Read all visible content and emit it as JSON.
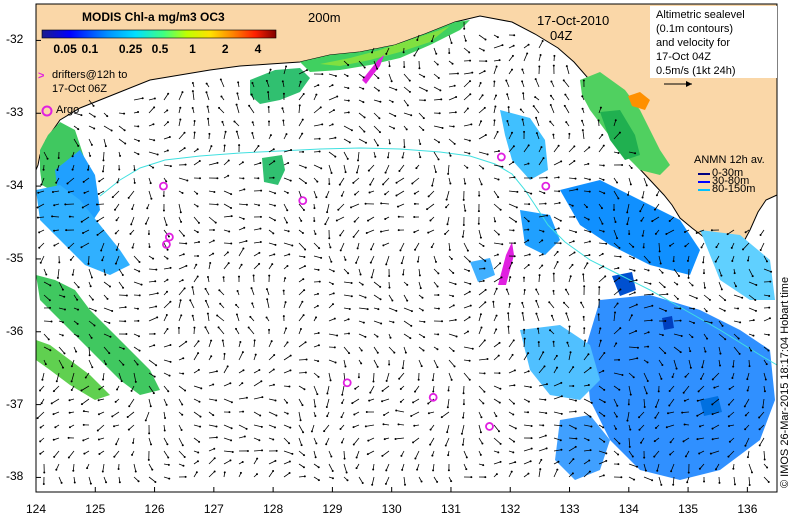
{
  "colorbar": {
    "title": "MODIS Chl-a mg/m3 OC3",
    "ticks": [
      "0.05",
      "0.1",
      "0.25",
      "0.5",
      "1",
      "2",
      "4"
    ],
    "colors": [
      "#1c1c8c",
      "#0000ff",
      "#0090ff",
      "#00e0ff",
      "#40ff80",
      "#c0ff00",
      "#ffe000",
      "#ff8000",
      "#ff2000",
      "#c00000",
      "#800000"
    ]
  },
  "contour_label": "200m",
  "date": {
    "date": "17-Oct-2010",
    "time": "04Z"
  },
  "altimetry_legend": {
    "lines": [
      "Altimetric sealevel",
      "(0.1m contours)",
      "and velocity for",
      "17-Oct 04Z",
      "0.5m/s (1kt 24h)"
    ]
  },
  "drifters_legend": {
    "lines": [
      "drifters@12h to",
      "17-Oct 06Z"
    ],
    "symbol": ">"
  },
  "argo_legend": {
    "label": "Argo",
    "symbol": "o"
  },
  "anmn_legend": {
    "title": "ANMN 12h av.",
    "items": [
      {
        "label": "0-30m",
        "color": "#000080"
      },
      {
        "label": "30-80m",
        "color": "#0000ff"
      },
      {
        "label": "80-150m",
        "color": "#00c0ff"
      }
    ]
  },
  "credit": "© IMOS 26-Mar-2015 18:17:04 Hobart time",
  "axes": {
    "lon_ticks": [
      "124",
      "125",
      "126",
      "127",
      "128",
      "129",
      "130",
      "131",
      "132",
      "133",
      "134",
      "135",
      "136"
    ],
    "lat_ticks": [
      "-32",
      "-33",
      "-34",
      "-35",
      "-36",
      "-37",
      "-38"
    ],
    "lon_range": [
      124,
      136.5
    ],
    "lat_range": [
      -31.5,
      -38.2
    ]
  },
  "colors": {
    "land": "#fad7a8",
    "ocean": "#ffffff",
    "argo": "#e020e0",
    "isobath": "#40e0e0"
  },
  "argo_floats": [
    {
      "lon": 126.15,
      "lat": -34.0
    },
    {
      "lon": 126.25,
      "lat": -34.7
    },
    {
      "lon": 126.2,
      "lat": -34.8
    },
    {
      "lon": 128.5,
      "lat": -34.2
    },
    {
      "lon": 129.25,
      "lat": -36.7
    },
    {
      "lon": 130.7,
      "lat": -36.9
    },
    {
      "lon": 131.65,
      "lat": -37.3
    },
    {
      "lon": 131.85,
      "lat": -33.6
    },
    {
      "lon": 132.6,
      "lat": -34.0
    }
  ]
}
